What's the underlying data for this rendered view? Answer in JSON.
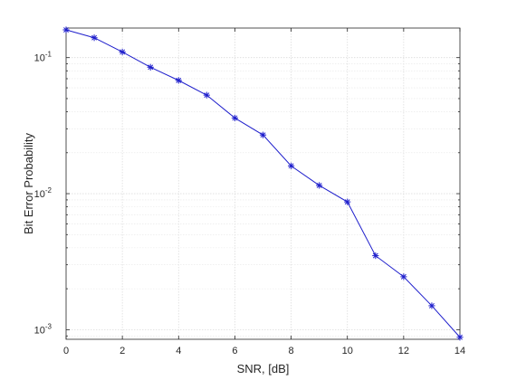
{
  "chart_data": {
    "type": "line",
    "title": "",
    "xlabel": "SNR, [dB]",
    "ylabel": "Bit Error Probability",
    "xlim": [
      0,
      14
    ],
    "ylim": [
      0.00085,
      0.165
    ],
    "yscale": "log",
    "grid": true,
    "x_ticks": [
      "0",
      "2",
      "4",
      "6",
      "8",
      "10",
      "12",
      "14"
    ],
    "x_tick_values": [
      0,
      2,
      4,
      6,
      8,
      10,
      12,
      14
    ],
    "y_ticks": [
      {
        "value": 0.1,
        "base": "10",
        "exp": "-1"
      },
      {
        "value": 0.01,
        "base": "10",
        "exp": "-2"
      },
      {
        "value": 0.001,
        "base": "10",
        "exp": "-3"
      }
    ],
    "series": [
      {
        "color": "#1f1fcc",
        "marker": "asterisk",
        "x": [
          0,
          1,
          2,
          3,
          4,
          5,
          6,
          7,
          8,
          9,
          10,
          11,
          12,
          13,
          14
        ],
        "y": [
          0.16,
          0.14,
          0.11,
          0.085,
          0.068,
          0.053,
          0.036,
          0.027,
          0.016,
          0.0115,
          0.0087,
          0.0035,
          0.00245,
          0.0015,
          0.00088
        ]
      }
    ]
  }
}
